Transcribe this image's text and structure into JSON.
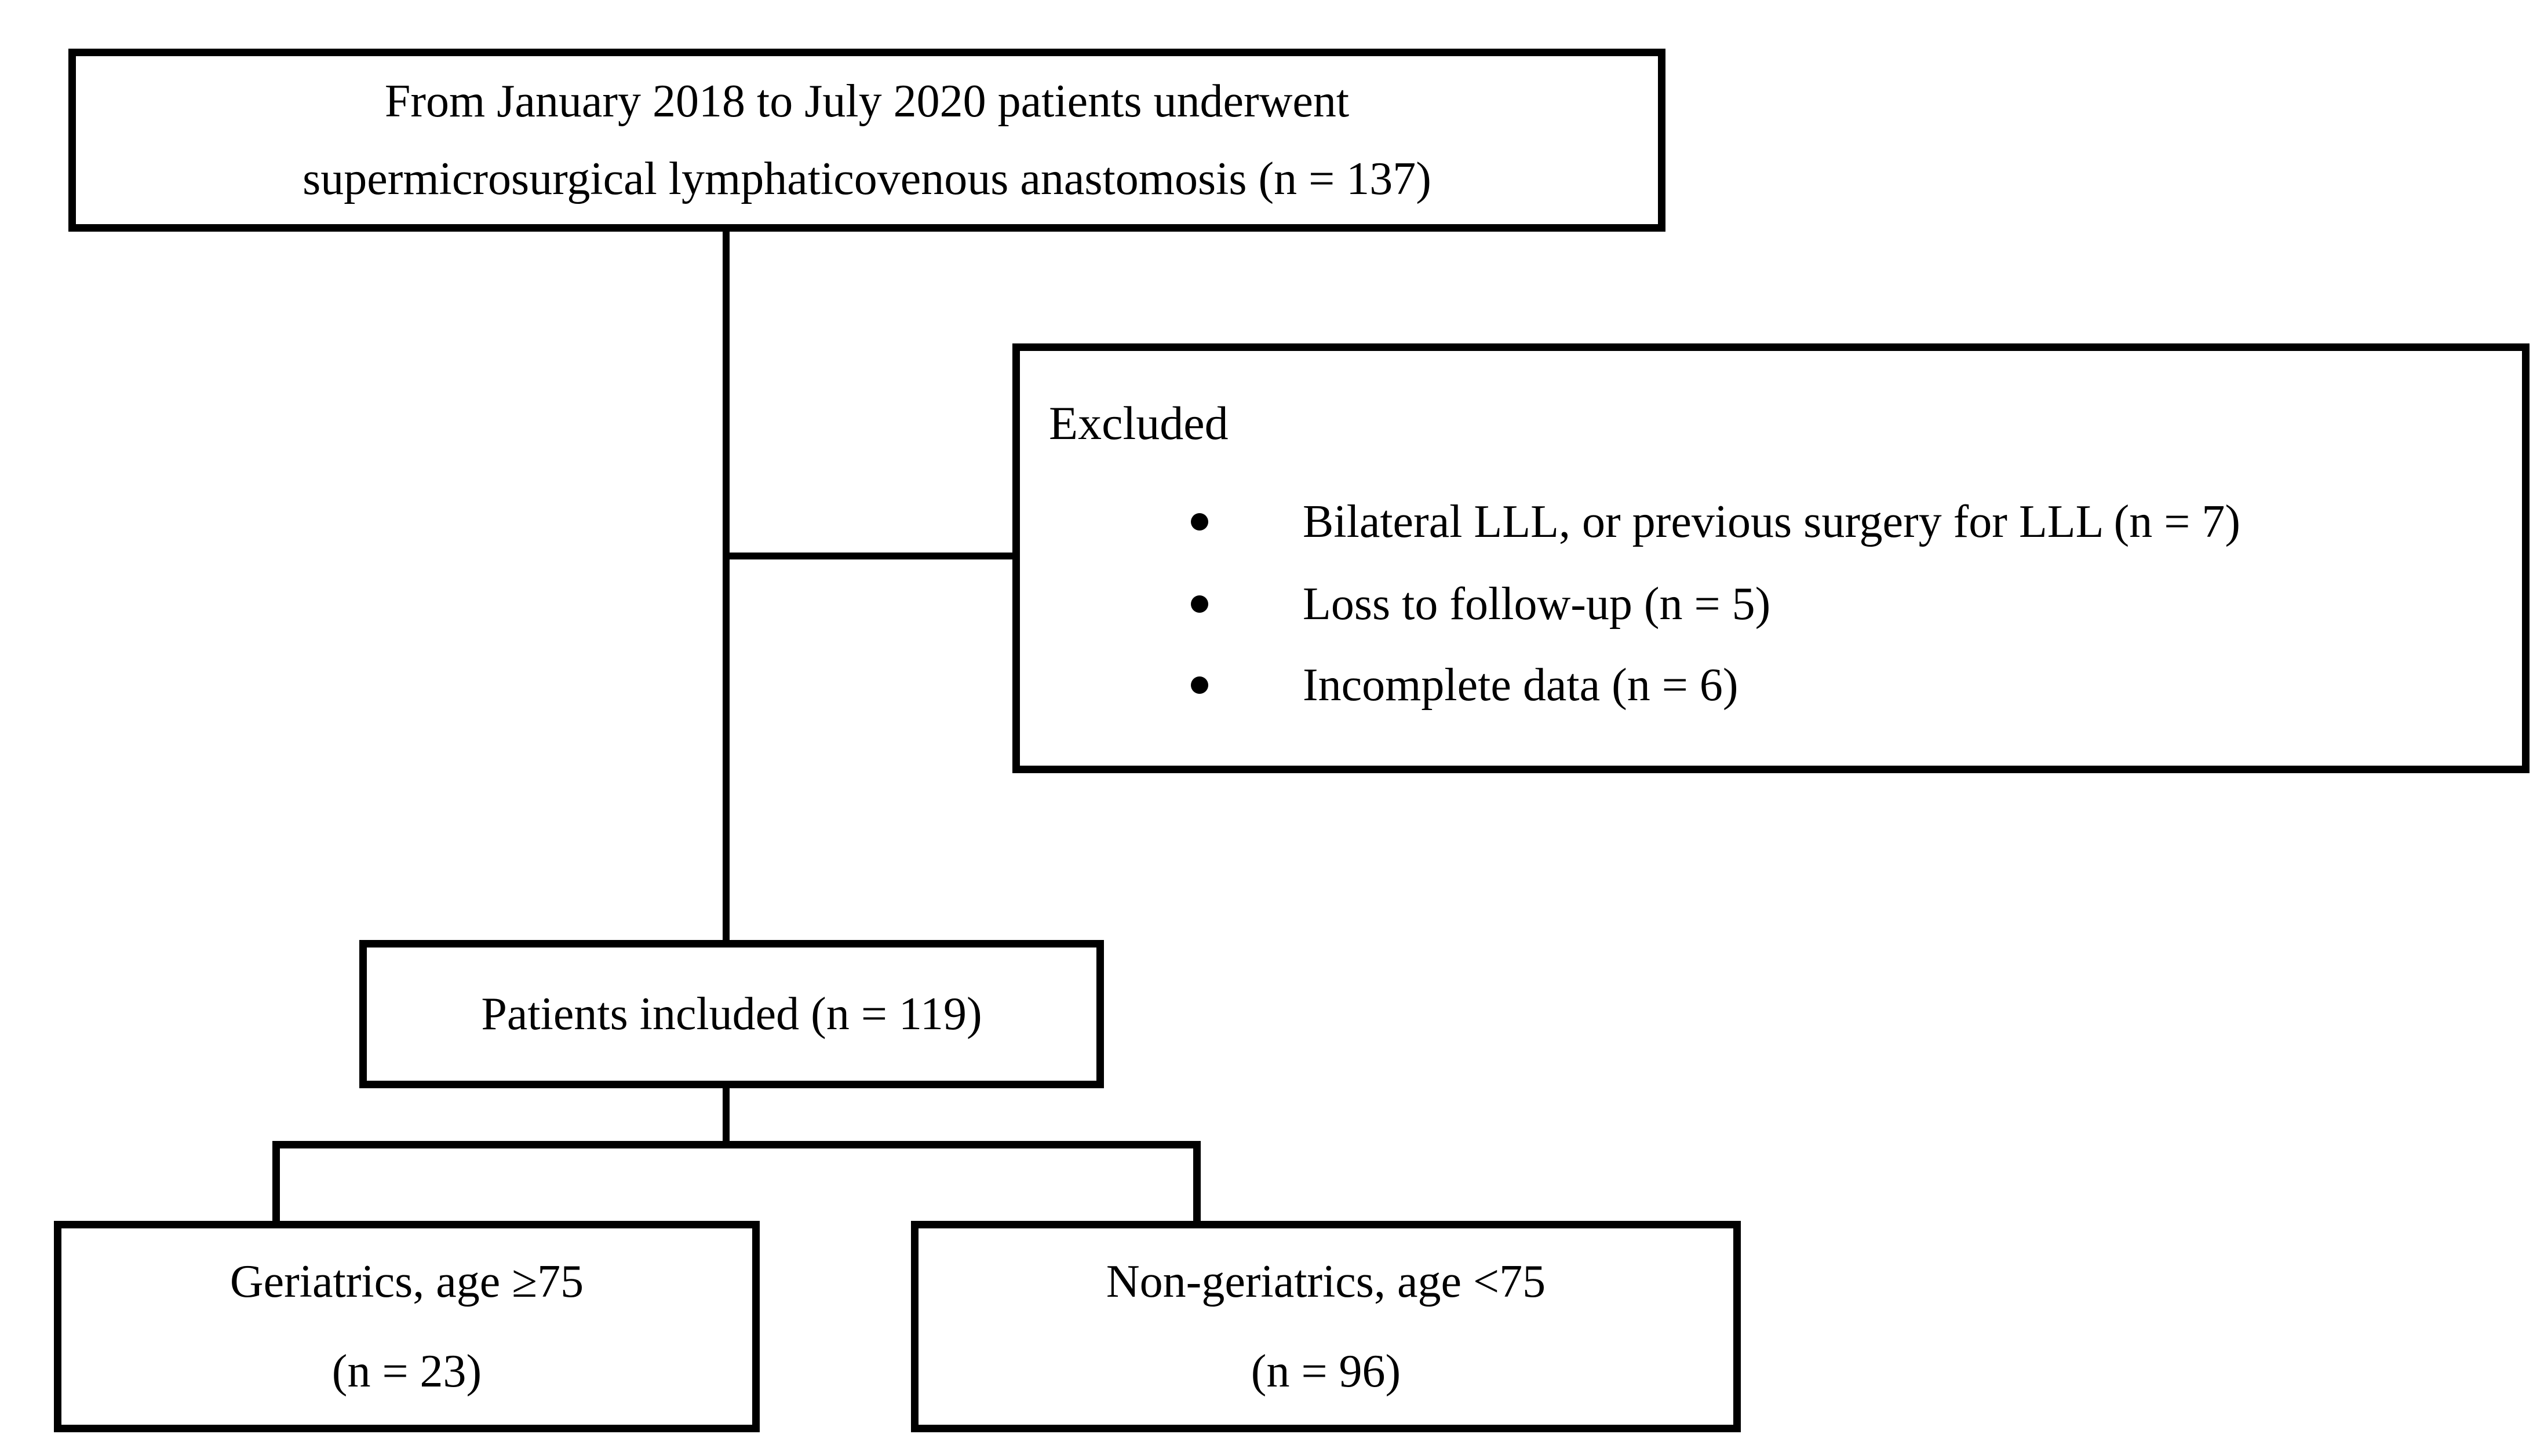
{
  "figure": {
    "background_color": "#ffffff",
    "border_color": "#000000",
    "text_color": "#000000"
  },
  "boxes": {
    "enrollment": {
      "line1": "From January 2018 to July 2020 patients underwent",
      "line2": "supermicrosurgical lymphaticovenous anastomosis (n = 137)"
    },
    "excluded": {
      "title": "Excluded",
      "items": [
        "Bilateral LLL, or previous surgery for LLL (n = 7)",
        "Loss to follow-up (n = 5)",
        "Incomplete data (n = 6)"
      ]
    },
    "included": {
      "label": "Patients included (n = 119)"
    },
    "geriatrics": {
      "line1": "Geriatrics, age ≥75",
      "line2": "(n = 23)"
    },
    "non_geriatrics": {
      "line1": "Non-geriatrics, age <75",
      "line2": "(n = 96)"
    }
  }
}
